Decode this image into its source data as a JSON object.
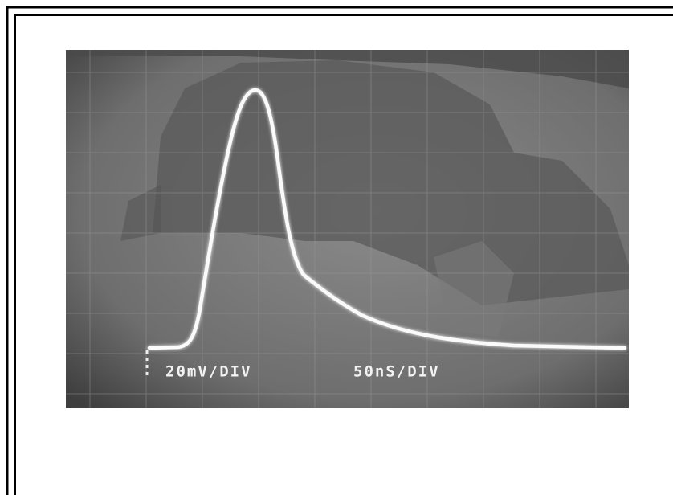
{
  "screen": {
    "vertical_scale": "20mV/DIV",
    "horizontal_scale": "50nS/DIV"
  }
}
